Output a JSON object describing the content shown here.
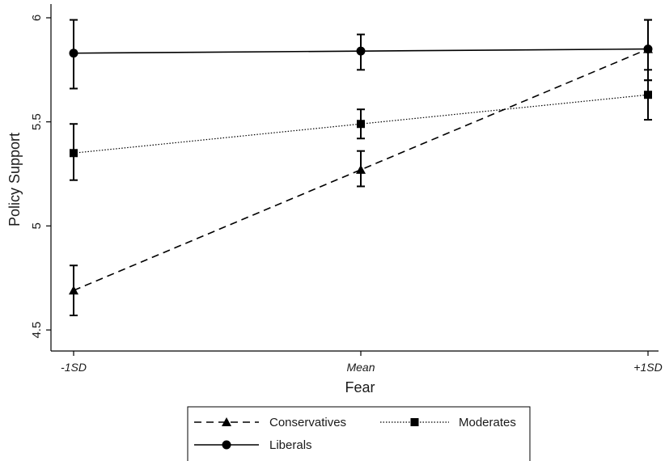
{
  "chart_data": {
    "type": "line",
    "title": "",
    "xlabel": "Fear",
    "ylabel": "Policy Support",
    "categories": [
      "-1SD",
      "Mean",
      "+1SD"
    ],
    "ylim": [
      4.45,
      6.05
    ],
    "yticks": [
      4.5,
      5,
      5.5,
      6
    ],
    "ytick_labels": [
      "4.5",
      "5",
      "5.5",
      "6"
    ],
    "grid": false,
    "legend_position": "bottom",
    "series": [
      {
        "name": "Conservatives",
        "values": [
          4.69,
          5.27,
          5.85
        ],
        "ci_low": [
          4.57,
          5.19,
          5.7
        ],
        "ci_high": [
          4.81,
          5.36,
          5.99
        ],
        "style": "dashed",
        "marker": "triangle",
        "color": "#000000"
      },
      {
        "name": "Moderates",
        "values": [
          5.35,
          5.49,
          5.63
        ],
        "ci_low": [
          5.22,
          5.42,
          5.51
        ],
        "ci_high": [
          5.49,
          5.56,
          5.75
        ],
        "style": "dotted",
        "marker": "square",
        "color": "#000000"
      },
      {
        "name": "Liberals",
        "values": [
          5.83,
          5.84,
          5.85
        ],
        "ci_low": [
          5.66,
          5.75,
          5.7
        ],
        "ci_high": [
          5.99,
          5.92,
          5.99
        ],
        "style": "solid",
        "marker": "circle",
        "color": "#000000"
      }
    ]
  }
}
